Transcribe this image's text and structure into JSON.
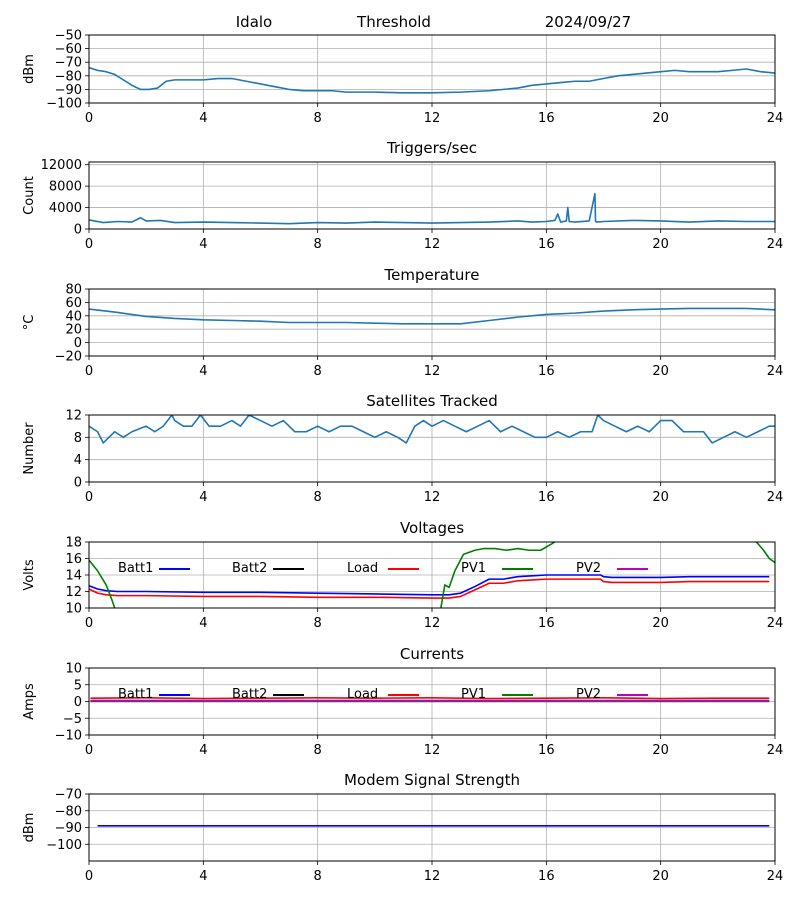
{
  "header": {
    "station": "Idalo",
    "mode": "Threshold",
    "date": "2024/09/27"
  },
  "chart_data": [
    {
      "id": "threshold",
      "type": "line",
      "title": "",
      "xlabel": "",
      "ylabel": "dBm",
      "xlim": [
        0,
        24
      ],
      "ylim": [
        -100,
        -50
      ],
      "xticks": [
        0,
        4,
        8,
        12,
        16,
        20,
        24
      ],
      "yticks": [
        -100,
        -90,
        -80,
        -70,
        -60,
        -50
      ],
      "ytick_labels": [
        "−100",
        "−90",
        "−80",
        "−70",
        "−60",
        "−50"
      ],
      "grid": true,
      "series": [
        {
          "color": "#1f77b4",
          "x": [
            0,
            0.3,
            0.6,
            0.9,
            1.2,
            1.5,
            1.8,
            2.1,
            2.4,
            2.7,
            3.0,
            3.5,
            4.0,
            4.5,
            5.0,
            5.5,
            6.0,
            6.5,
            7.0,
            7.5,
            8.0,
            8.5,
            9.0,
            10.0,
            11.0,
            12.0,
            13.0,
            14.0,
            15.0,
            15.5,
            16.0,
            16.5,
            17.0,
            17.5,
            18.0,
            18.5,
            19.0,
            19.5,
            20.0,
            20.5,
            21.0,
            21.5,
            22.0,
            22.5,
            23.0,
            23.5,
            24.0
          ],
          "y": [
            -74,
            -76,
            -77,
            -79,
            -83,
            -87,
            -90,
            -90,
            -89,
            -84,
            -83,
            -83,
            -83,
            -82,
            -82,
            -84,
            -86,
            -88,
            -90,
            -91,
            -91,
            -91,
            -92,
            -92,
            -92.5,
            -92.5,
            -92,
            -91,
            -89,
            -87,
            -86,
            -85,
            -84,
            -84,
            -82,
            -80,
            -79,
            -78,
            -77,
            -76,
            -77,
            -77,
            -77,
            -76,
            -75,
            -77,
            -78
          ]
        }
      ]
    },
    {
      "id": "triggers",
      "type": "line",
      "title": "Triggers/sec",
      "xlabel": "",
      "ylabel": "Count",
      "xlim": [
        0,
        24
      ],
      "ylim": [
        0,
        12500
      ],
      "xticks": [
        0,
        4,
        8,
        12,
        16,
        20,
        24
      ],
      "yticks": [
        0,
        4000,
        8000,
        12000
      ],
      "ytick_labels": [
        "0",
        "4000",
        "8000",
        "12000"
      ],
      "grid": true,
      "series": [
        {
          "color": "#1f77b4",
          "x": [
            0,
            0.5,
            1.0,
            1.5,
            1.8,
            2.0,
            2.5,
            3.0,
            4.0,
            5.0,
            6.0,
            7.0,
            8.0,
            9.0,
            10.0,
            11.0,
            12.0,
            13.0,
            14.0,
            15.0,
            15.5,
            16.0,
            16.3,
            16.4,
            16.5,
            16.7,
            16.75,
            16.8,
            17.0,
            17.5,
            17.7,
            17.72,
            17.75,
            18.0,
            19.0,
            20.0,
            21.0,
            22.0,
            23.0,
            24.0
          ],
          "y": [
            1700,
            1200,
            1400,
            1300,
            2100,
            1500,
            1600,
            1200,
            1300,
            1200,
            1100,
            1000,
            1200,
            1100,
            1300,
            1200,
            1100,
            1200,
            1300,
            1500,
            1300,
            1400,
            1600,
            2800,
            1300,
            1500,
            4000,
            1400,
            1300,
            1500,
            6600,
            1500,
            1300,
            1400,
            1600,
            1500,
            1300,
            1500,
            1400,
            1400
          ]
        }
      ]
    },
    {
      "id": "temperature",
      "type": "line",
      "title": "Temperature",
      "xlabel": "",
      "ylabel": "°C",
      "xlim": [
        0,
        24
      ],
      "ylim": [
        -20,
        80
      ],
      "xticks": [
        0,
        4,
        8,
        12,
        16,
        20,
        24
      ],
      "yticks": [
        -20,
        0,
        20,
        40,
        60,
        80
      ],
      "ytick_labels": [
        "−20",
        "0",
        "20",
        "40",
        "60",
        "80"
      ],
      "grid": true,
      "series": [
        {
          "color": "#1f77b4",
          "x": [
            0,
            1,
            2,
            3,
            4,
            5,
            6,
            7,
            8,
            9,
            10,
            11,
            12,
            13,
            14,
            15,
            16,
            17,
            18,
            19,
            20,
            21,
            22,
            23,
            24
          ],
          "y": [
            50,
            45,
            39,
            36,
            34,
            33,
            32,
            30,
            30,
            30,
            29,
            28,
            28,
            28,
            33,
            38,
            42,
            44,
            47,
            49,
            50,
            51,
            51,
            51,
            49
          ]
        }
      ]
    },
    {
      "id": "satellites",
      "type": "line",
      "title": "Satellites Tracked",
      "xlabel": "",
      "ylabel": "Number",
      "xlim": [
        0,
        24
      ],
      "ylim": [
        0,
        12
      ],
      "xticks": [
        0,
        4,
        8,
        12,
        16,
        20,
        24
      ],
      "yticks": [
        0,
        4,
        8,
        12
      ],
      "ytick_labels": [
        "0",
        "4",
        "8",
        "12"
      ],
      "grid": true,
      "series": [
        {
          "color": "#1f77b4",
          "x": [
            0,
            0.3,
            0.5,
            0.7,
            0.9,
            1.2,
            1.5,
            2.0,
            2.3,
            2.6,
            2.9,
            3.0,
            3.3,
            3.6,
            3.9,
            4.2,
            4.6,
            5.0,
            5.3,
            5.6,
            6.0,
            6.4,
            6.8,
            7.2,
            7.6,
            8.0,
            8.4,
            8.8,
            9.2,
            9.6,
            10.0,
            10.4,
            10.8,
            11.1,
            11.4,
            11.7,
            12.0,
            12.4,
            12.8,
            13.2,
            13.6,
            14.0,
            14.4,
            14.8,
            15.2,
            15.6,
            16.0,
            16.4,
            16.8,
            17.2,
            17.6,
            17.8,
            18.0,
            18.4,
            18.8,
            19.2,
            19.6,
            19.8,
            20.0,
            20.4,
            20.8,
            21.2,
            21.5,
            21.8,
            22.2,
            22.6,
            23.0,
            23.4,
            23.8,
            24.0
          ],
          "y": [
            10,
            9,
            7,
            8,
            9,
            8,
            9,
            10,
            9,
            10,
            12,
            11,
            10,
            10,
            12,
            10,
            10,
            11,
            10,
            12,
            11,
            10,
            11,
            9,
            9,
            10,
            9,
            10,
            10,
            9,
            8,
            9,
            8,
            7,
            10,
            11,
            10,
            11,
            10,
            9,
            10,
            11,
            9,
            10,
            9,
            8,
            8,
            9,
            8,
            9,
            9,
            12,
            11,
            10,
            9,
            10,
            9,
            10,
            11,
            11,
            9,
            9,
            9,
            7,
            8,
            9,
            8,
            9,
            10,
            10
          ]
        }
      ]
    },
    {
      "id": "voltages",
      "type": "line",
      "title": "Voltages",
      "xlabel": "",
      "ylabel": "Volts",
      "xlim": [
        0,
        24
      ],
      "ylim": [
        10,
        18
      ],
      "xticks": [
        0,
        4,
        8,
        12,
        16,
        20,
        24
      ],
      "yticks": [
        10,
        12,
        14,
        16,
        18
      ],
      "ytick_labels": [
        "10",
        "12",
        "14",
        "16",
        "18"
      ],
      "grid": true,
      "legend": [
        "Batt1",
        "Batt2",
        "Load",
        "PV1",
        "PV2"
      ],
      "series": [
        {
          "name": "Batt1",
          "color": "#0000ff",
          "x": [
            0,
            0.3,
            0.6,
            1,
            2,
            4,
            6,
            8,
            10,
            12,
            12.6,
            13,
            13.5,
            14,
            14.5,
            15,
            15.5,
            16,
            16.5,
            17,
            17.5,
            17.9,
            18,
            18.3,
            19,
            20,
            21,
            22,
            23,
            23.8
          ],
          "y": [
            12.7,
            12.3,
            12.1,
            12.0,
            12.0,
            11.9,
            11.9,
            11.8,
            11.7,
            11.6,
            11.6,
            11.8,
            12.6,
            13.5,
            13.5,
            13.8,
            13.9,
            14.0,
            14.0,
            14.0,
            14.0,
            14.0,
            13.8,
            13.7,
            13.7,
            13.7,
            13.8,
            13.8,
            13.8,
            13.8
          ]
        },
        {
          "name": "Load",
          "color": "#ff0000",
          "x": [
            0,
            0.3,
            0.6,
            1,
            2,
            4,
            6,
            8,
            10,
            12,
            12.6,
            13,
            13.5,
            14,
            14.5,
            15,
            15.5,
            16,
            16.5,
            17,
            17.5,
            17.9,
            18,
            18.3,
            19,
            20,
            21,
            22,
            23,
            23.8
          ],
          "y": [
            12.3,
            11.8,
            11.6,
            11.5,
            11.5,
            11.4,
            11.4,
            11.3,
            11.3,
            11.2,
            11.2,
            11.4,
            12.2,
            13.0,
            13.0,
            13.3,
            13.4,
            13.5,
            13.5,
            13.5,
            13.5,
            13.5,
            13.2,
            13.1,
            13.1,
            13.1,
            13.2,
            13.2,
            13.2,
            13.2
          ]
        },
        {
          "name": "PV1",
          "color": "#008000",
          "x": [
            0,
            0.3,
            0.6,
            0.8,
            0.9,
            1.0,
            1.2,
            null,
            12.2,
            12.3,
            12.45,
            12.6,
            12.8,
            13.1,
            13.5,
            13.8,
            14.2,
            14.6,
            15.0,
            15.4,
            15.8,
            16.2,
            16.5,
            null,
            23.0,
            23.3,
            23.6,
            23.8,
            24.0
          ],
          "y": [
            15.8,
            14.5,
            12.8,
            11.0,
            10.0,
            9.0,
            8.0,
            null,
            8.0,
            9.8,
            12.8,
            12.5,
            14.5,
            16.5,
            17.0,
            17.2,
            17.2,
            17.0,
            17.2,
            17.0,
            17.0,
            17.8,
            18.5,
            null,
            19.5,
            18.2,
            17.0,
            16.0,
            15.5
          ]
        },
        {
          "name": "Batt2",
          "color": "#000000",
          "x": [],
          "y": []
        },
        {
          "name": "PV2",
          "color": "#bf00bf",
          "x": [],
          "y": []
        }
      ]
    },
    {
      "id": "currents",
      "type": "line",
      "title": "Currents",
      "xlabel": "",
      "ylabel": "Amps",
      "xlim": [
        0,
        24
      ],
      "ylim": [
        -10,
        10
      ],
      "xticks": [
        0,
        4,
        8,
        12,
        16,
        20,
        24
      ],
      "yticks": [
        -10,
        -5,
        0,
        5,
        10
      ],
      "ytick_labels": [
        "−10",
        "−5",
        "0",
        "5",
        "10"
      ],
      "grid": true,
      "legend": [
        "Batt1",
        "Batt2",
        "Load",
        "PV1",
        "PV2"
      ],
      "series": [
        {
          "name": "Batt1",
          "color": "#0000ff",
          "x": [
            0.05,
            4,
            8,
            12,
            16,
            20,
            23.8
          ],
          "y": [
            0.3,
            0.3,
            0.3,
            0.3,
            0.3,
            0.3,
            0.3
          ]
        },
        {
          "name": "PV1",
          "color": "#008000",
          "x": [
            0.05,
            4,
            8,
            12,
            16,
            20,
            23.8
          ],
          "y": [
            0.0,
            0.0,
            0.0,
            0.0,
            0.0,
            0.0,
            0.0
          ]
        },
        {
          "name": "PV2",
          "color": "#bf00bf",
          "x": [
            0.05,
            4,
            8,
            12,
            16,
            20,
            23.8
          ],
          "y": [
            0.2,
            0.2,
            0.2,
            0.2,
            0.2,
            0.2,
            0.2
          ]
        },
        {
          "name": "Load",
          "color": "#ff0000",
          "x": [
            0.05,
            2,
            4,
            6,
            8,
            10,
            12,
            14,
            16,
            18,
            20,
            22,
            23.8
          ],
          "y": [
            1.0,
            1.1,
            0.9,
            1.0,
            1.1,
            1.0,
            1.1,
            0.9,
            1.0,
            1.1,
            0.9,
            1.0,
            1.0
          ]
        },
        {
          "name": "Batt2",
          "color": "#000000",
          "x": [],
          "y": []
        }
      ]
    },
    {
      "id": "modem",
      "type": "line",
      "title": "Modem Signal Strength",
      "xlabel": "",
      "ylabel": "dBm",
      "xlim": [
        0,
        24
      ],
      "ylim": [
        -110,
        -70
      ],
      "xticks": [
        0,
        4,
        8,
        12,
        16,
        20,
        24
      ],
      "yticks": [
        -100,
        -90,
        -80,
        -70
      ],
      "ytick_labels": [
        "−100",
        "−90",
        "−80",
        "−70"
      ],
      "grid": true,
      "series": [
        {
          "color": "#0000ff",
          "x": [
            0.3,
            23.8
          ],
          "y": [
            -89,
            -89
          ]
        }
      ]
    }
  ]
}
